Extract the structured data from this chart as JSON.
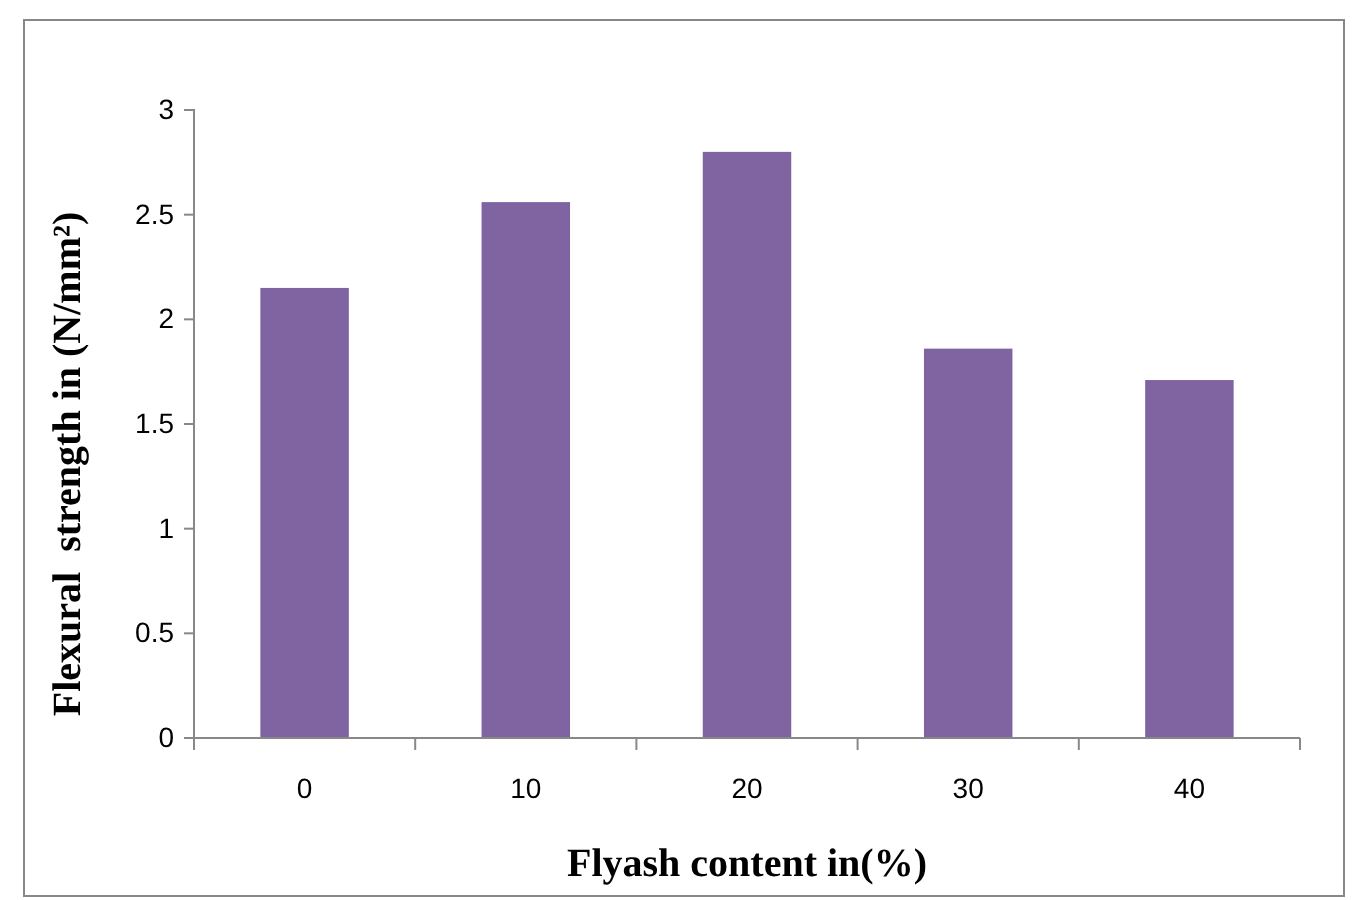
{
  "chart_data": {
    "type": "bar",
    "xlabel": "Flyash content in(%)",
    "ylabel": "Flexural  strength in (N/mm²)",
    "categories": [
      "0",
      "10",
      "20",
      "30",
      "40"
    ],
    "values": [
      2.15,
      2.56,
      2.8,
      1.86,
      1.71
    ],
    "color": "#8064a2",
    "ylim": [
      0,
      3
    ],
    "yticks": [
      0,
      0.5,
      1,
      1.5,
      2,
      2.5,
      3
    ],
    "grid": false
  }
}
